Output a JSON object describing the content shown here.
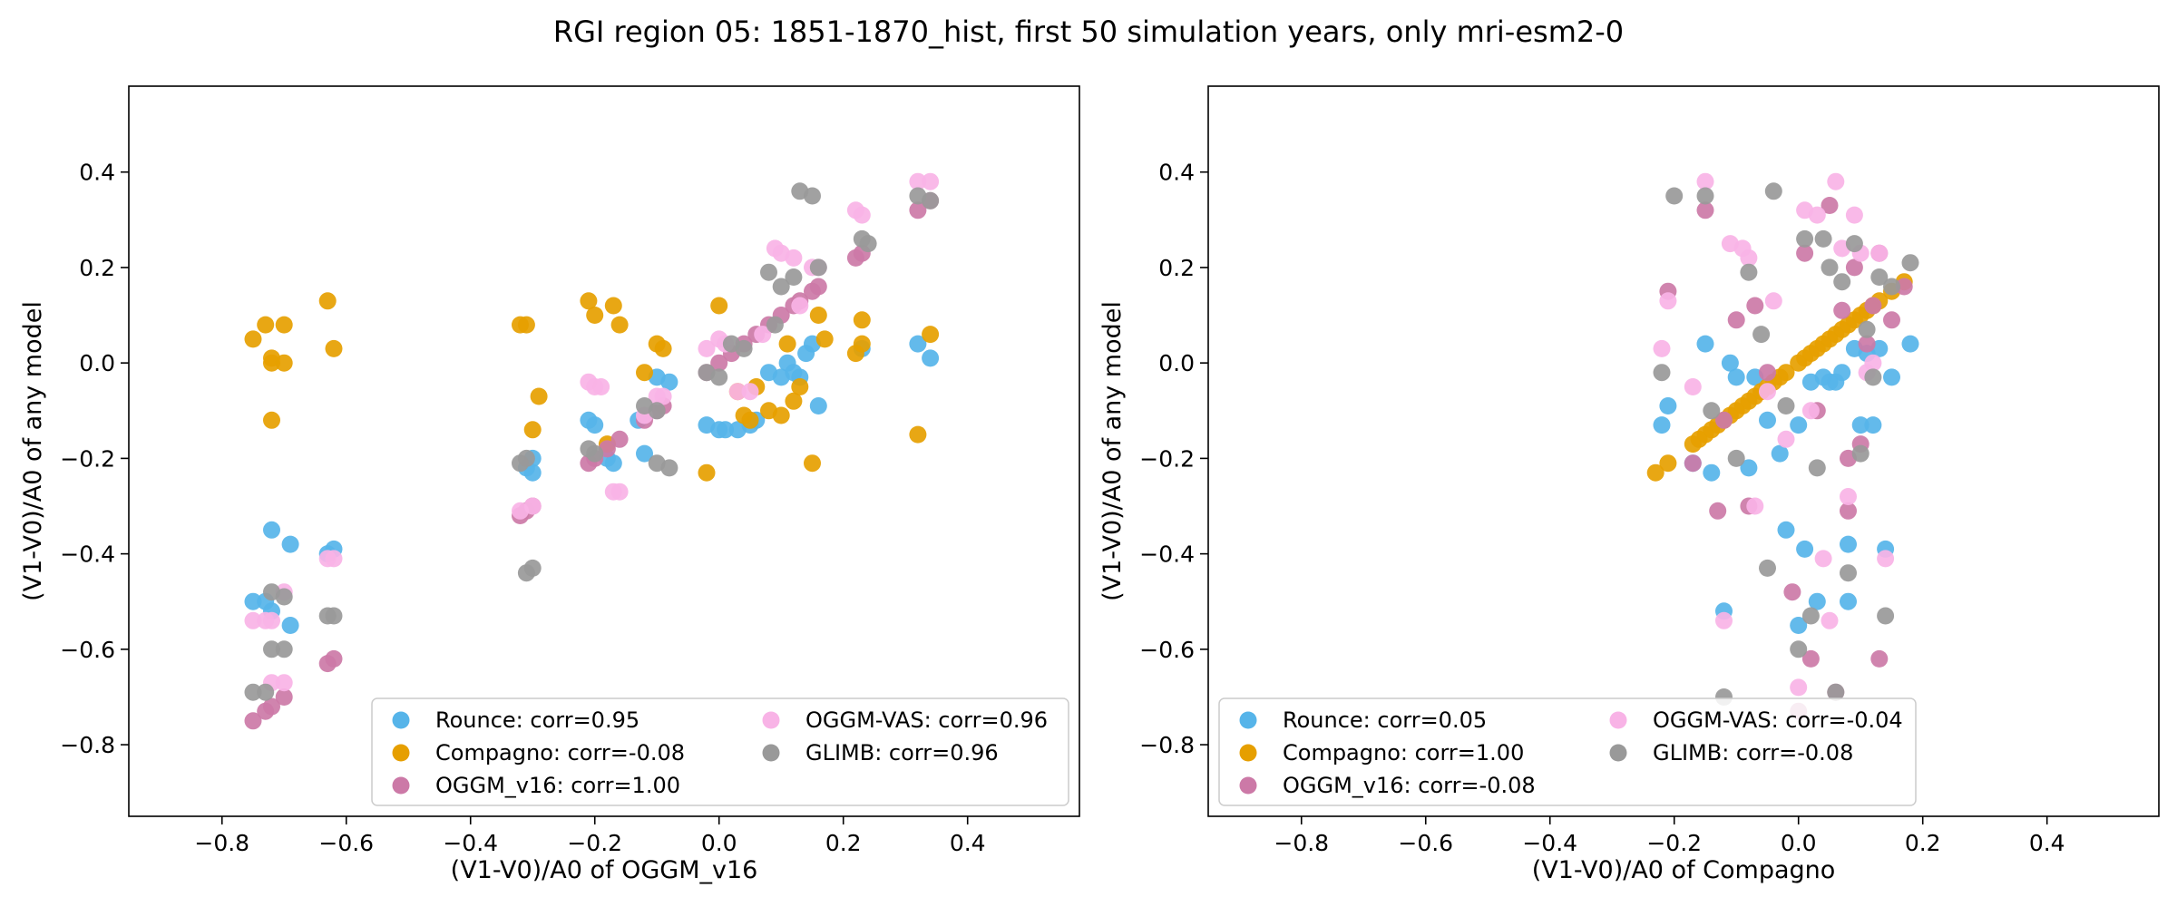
{
  "figure": {
    "title": "RGI region 05: 1851-1870_hist, first 50 simulation years, only mri-esm2-0"
  },
  "colors": {
    "Rounce": "#56b4e9",
    "Compagno": "#e69f00",
    "OGGM_v16": "#cc79a7",
    "OGGM-VAS": "#f8b3e6",
    "GLIMB": "#999999"
  },
  "chart_data": [
    {
      "type": "scatter",
      "xlabel": "(V1-V0)/A0 of OGGM_v16",
      "ylabel": "(V1-V0)/A0 of any model",
      "xlim": [
        -0.95,
        0.58
      ],
      "ylim": [
        -0.95,
        0.58
      ],
      "xticks": [
        "−0.8",
        "−0.6",
        "−0.4",
        "−0.2",
        "0.0",
        "0.2",
        "0.4"
      ],
      "yticks": [
        "−0.8",
        "−0.6",
        "−0.4",
        "−0.2",
        "0.0",
        "0.2",
        "0.4"
      ],
      "legend_placement": "lower-right",
      "series": [
        {
          "name": "Rounce",
          "legend": "Rounce: corr=0.95",
          "x": [
            -0.75,
            -0.73,
            -0.72,
            -0.72,
            -0.69,
            -0.69,
            -0.63,
            -0.62,
            -0.31,
            -0.3,
            -0.3,
            -0.21,
            -0.2,
            -0.18,
            -0.17,
            -0.13,
            -0.12,
            -0.1,
            -0.08,
            -0.02,
            0.0,
            0.01,
            0.03,
            0.05,
            0.06,
            0.08,
            0.1,
            0.11,
            0.12,
            0.13,
            0.14,
            0.15,
            0.16,
            0.23,
            0.32,
            0.34
          ],
          "y": [
            -0.5,
            -0.5,
            -0.52,
            -0.35,
            -0.38,
            -0.55,
            -0.4,
            -0.39,
            -0.22,
            -0.23,
            -0.2,
            -0.12,
            -0.13,
            -0.2,
            -0.21,
            -0.12,
            -0.19,
            -0.03,
            -0.04,
            -0.13,
            -0.14,
            -0.14,
            -0.14,
            -0.13,
            -0.12,
            -0.02,
            -0.03,
            0.0,
            -0.02,
            -0.03,
            0.02,
            0.04,
            -0.09,
            0.03,
            0.04,
            0.01
          ]
        },
        {
          "name": "Compagno",
          "legend": "Compagno: corr=-0.08",
          "x": [
            -0.75,
            -0.73,
            -0.72,
            -0.72,
            -0.72,
            -0.7,
            -0.7,
            -0.63,
            -0.62,
            -0.32,
            -0.31,
            -0.3,
            -0.29,
            -0.21,
            -0.2,
            -0.18,
            -0.17,
            -0.16,
            -0.12,
            -0.1,
            -0.09,
            -0.02,
            0.0,
            0.03,
            0.04,
            0.05,
            0.06,
            0.08,
            0.1,
            0.11,
            0.12,
            0.13,
            0.15,
            0.16,
            0.17,
            0.22,
            0.23,
            0.23,
            0.32,
            0.34
          ],
          "y": [
            0.05,
            0.08,
            0.0,
            0.01,
            -0.12,
            0.08,
            0.0,
            0.13,
            0.03,
            0.08,
            0.08,
            -0.14,
            -0.07,
            0.13,
            0.1,
            -0.17,
            0.12,
            0.08,
            -0.02,
            0.04,
            0.03,
            -0.23,
            0.12,
            -0.06,
            -0.11,
            -0.12,
            -0.05,
            -0.1,
            -0.11,
            0.04,
            -0.08,
            -0.05,
            -0.21,
            0.1,
            0.05,
            0.02,
            0.09,
            0.04,
            -0.15,
            0.06
          ]
        },
        {
          "name": "OGGM_v16",
          "legend": "OGGM_v16: corr=1.00",
          "x": [
            -0.75,
            -0.73,
            -0.72,
            -0.7,
            -0.63,
            -0.62,
            -0.32,
            -0.31,
            -0.3,
            -0.21,
            -0.2,
            -0.18,
            -0.16,
            -0.12,
            -0.1,
            -0.09,
            -0.02,
            0.0,
            0.02,
            0.04,
            0.06,
            0.08,
            0.1,
            0.12,
            0.13,
            0.15,
            0.16,
            0.22,
            0.23,
            0.32,
            0.34
          ],
          "y": [
            -0.75,
            -0.73,
            -0.72,
            -0.7,
            -0.63,
            -0.62,
            -0.32,
            -0.31,
            -0.3,
            -0.21,
            -0.2,
            -0.18,
            -0.16,
            -0.12,
            -0.1,
            -0.09,
            -0.02,
            0.0,
            0.02,
            0.04,
            0.06,
            0.08,
            0.1,
            0.12,
            0.13,
            0.15,
            0.16,
            0.22,
            0.23,
            0.32,
            0.34
          ]
        },
        {
          "name": "OGGM-VAS",
          "legend": "OGGM-VAS: corr=0.96",
          "x": [
            -0.75,
            -0.73,
            -0.72,
            -0.7,
            -0.7,
            -0.72,
            -0.63,
            -0.62,
            -0.32,
            -0.3,
            -0.21,
            -0.2,
            -0.19,
            -0.17,
            -0.16,
            -0.12,
            -0.1,
            -0.09,
            -0.02,
            0.0,
            0.01,
            0.03,
            0.05,
            0.07,
            0.09,
            0.1,
            0.12,
            0.13,
            0.15,
            0.16,
            0.22,
            0.23,
            0.32,
            0.34
          ],
          "y": [
            -0.54,
            -0.54,
            -0.54,
            -0.48,
            -0.67,
            -0.67,
            -0.41,
            -0.41,
            -0.31,
            -0.3,
            -0.04,
            -0.05,
            -0.05,
            -0.27,
            -0.27,
            -0.11,
            -0.07,
            -0.07,
            0.03,
            0.05,
            0.04,
            -0.06,
            -0.06,
            0.06,
            0.24,
            0.23,
            0.22,
            0.12,
            0.2,
            0.2,
            0.32,
            0.31,
            0.38,
            0.38
          ]
        },
        {
          "name": "GLIMB",
          "legend": "GLIMB: corr=0.96",
          "x": [
            -0.75,
            -0.73,
            -0.72,
            -0.72,
            -0.7,
            -0.7,
            -0.63,
            -0.62,
            -0.32,
            -0.31,
            -0.31,
            -0.3,
            -0.21,
            -0.2,
            -0.12,
            -0.1,
            -0.1,
            -0.08,
            -0.02,
            0.0,
            0.02,
            0.04,
            0.08,
            0.09,
            0.1,
            0.12,
            0.13,
            0.15,
            0.16,
            0.23,
            0.24,
            0.32,
            0.34
          ],
          "y": [
            -0.69,
            -0.69,
            -0.48,
            -0.6,
            -0.49,
            -0.6,
            -0.53,
            -0.53,
            -0.21,
            -0.2,
            -0.44,
            -0.43,
            -0.18,
            -0.19,
            -0.09,
            -0.1,
            -0.21,
            -0.22,
            -0.02,
            -0.03,
            0.04,
            0.03,
            0.19,
            0.08,
            0.16,
            0.18,
            0.36,
            0.35,
            0.2,
            0.26,
            0.25,
            0.35,
            0.34
          ]
        }
      ]
    },
    {
      "type": "scatter",
      "xlabel": "(V1-V0)/A0 of Compagno",
      "ylabel": "(V1-V0)/A0 of any model",
      "xlim": [
        -0.95,
        0.58
      ],
      "ylim": [
        -0.95,
        0.58
      ],
      "xticks": [
        "−0.8",
        "−0.6",
        "−0.4",
        "−0.2",
        "0.0",
        "0.2",
        "0.4"
      ],
      "yticks": [
        "−0.8",
        "−0.6",
        "−0.4",
        "−0.2",
        "0.0",
        "0.2",
        "0.4"
      ],
      "legend_placement": "lower-left",
      "series": [
        {
          "name": "Rounce",
          "legend": "Rounce: corr=0.05",
          "x": [
            -0.22,
            -0.21,
            -0.17,
            -0.15,
            -0.14,
            -0.12,
            -0.11,
            -0.1,
            -0.08,
            -0.07,
            -0.05,
            -0.03,
            -0.02,
            0.0,
            0.0,
            0.01,
            0.02,
            0.03,
            0.04,
            0.05,
            0.06,
            0.07,
            0.08,
            0.08,
            0.09,
            0.1,
            0.11,
            0.12,
            0.13,
            0.14,
            0.15,
            0.18
          ],
          "y": [
            -0.13,
            -0.09,
            -0.21,
            0.04,
            -0.23,
            -0.52,
            0.0,
            -0.03,
            -0.22,
            -0.03,
            -0.12,
            -0.19,
            -0.35,
            -0.55,
            -0.13,
            -0.39,
            -0.04,
            -0.5,
            -0.03,
            -0.04,
            -0.04,
            -0.02,
            -0.38,
            -0.5,
            0.03,
            -0.13,
            0.02,
            -0.13,
            0.03,
            -0.39,
            -0.03,
            0.04
          ]
        },
        {
          "name": "Compagno",
          "legend": "Compagno: corr=1.00",
          "x": [
            -0.23,
            -0.21,
            -0.17,
            -0.16,
            -0.15,
            -0.14,
            -0.13,
            -0.12,
            -0.11,
            -0.1,
            -0.09,
            -0.08,
            -0.07,
            -0.06,
            -0.05,
            -0.04,
            -0.03,
            -0.02,
            0.0,
            0.01,
            0.02,
            0.03,
            0.04,
            0.05,
            0.06,
            0.07,
            0.08,
            0.09,
            0.1,
            0.11,
            0.12,
            0.13,
            0.15,
            0.17
          ],
          "y": [
            -0.23,
            -0.21,
            -0.17,
            -0.16,
            -0.15,
            -0.14,
            -0.13,
            -0.12,
            -0.11,
            -0.1,
            -0.09,
            -0.08,
            -0.07,
            -0.06,
            -0.05,
            -0.04,
            -0.03,
            -0.02,
            0.0,
            0.01,
            0.02,
            0.03,
            0.04,
            0.05,
            0.06,
            0.07,
            0.08,
            0.09,
            0.1,
            0.11,
            0.12,
            0.13,
            0.15,
            0.17
          ]
        },
        {
          "name": "OGGM_v16",
          "legend": "OGGM_v16: corr=-0.08",
          "x": [
            -0.21,
            -0.17,
            -0.15,
            -0.13,
            -0.12,
            -0.1,
            -0.08,
            -0.07,
            -0.05,
            -0.01,
            0.0,
            0.01,
            0.02,
            0.03,
            0.05,
            0.06,
            0.07,
            0.08,
            0.08,
            0.09,
            0.1,
            0.11,
            0.12,
            0.13,
            0.13,
            0.15,
            0.17
          ],
          "y": [
            0.15,
            -0.21,
            0.32,
            -0.31,
            -0.12,
            0.09,
            -0.3,
            0.12,
            -0.02,
            -0.48,
            -0.73,
            0.23,
            -0.62,
            -0.1,
            0.33,
            -0.69,
            0.11,
            -0.31,
            -0.2,
            0.2,
            -0.17,
            0.04,
            0.12,
            0.23,
            -0.62,
            0.09,
            0.16
          ]
        },
        {
          "name": "OGGM-VAS",
          "legend": "OGGM-VAS: corr=-0.04",
          "x": [
            -0.22,
            -0.21,
            -0.17,
            -0.15,
            -0.12,
            -0.11,
            -0.09,
            -0.08,
            -0.07,
            -0.05,
            -0.04,
            -0.02,
            0.0,
            0.01,
            0.02,
            0.03,
            0.04,
            0.05,
            0.06,
            0.07,
            0.08,
            0.09,
            0.1,
            0.11,
            0.12,
            0.13,
            0.14
          ],
          "y": [
            0.03,
            0.13,
            -0.05,
            0.38,
            -0.54,
            0.25,
            0.24,
            0.22,
            -0.3,
            -0.06,
            0.13,
            -0.16,
            -0.68,
            0.32,
            -0.1,
            0.31,
            -0.41,
            -0.54,
            0.38,
            0.24,
            -0.28,
            0.31,
            0.23,
            -0.02,
            0.0,
            0.23,
            -0.41
          ]
        },
        {
          "name": "GLIMB",
          "legend": "GLIMB: corr=-0.08",
          "x": [
            -0.22,
            -0.2,
            -0.15,
            -0.14,
            -0.12,
            -0.1,
            -0.08,
            -0.06,
            -0.05,
            -0.04,
            -0.02,
            0.0,
            0.01,
            0.02,
            0.03,
            0.04,
            0.05,
            0.06,
            0.07,
            0.08,
            0.09,
            0.1,
            0.11,
            0.12,
            0.13,
            0.14,
            0.15,
            0.18
          ],
          "y": [
            -0.02,
            0.35,
            0.35,
            -0.1,
            -0.7,
            -0.2,
            0.19,
            0.06,
            -0.43,
            0.36,
            -0.09,
            -0.6,
            0.26,
            -0.53,
            -0.22,
            0.26,
            0.2,
            -0.69,
            0.17,
            -0.44,
            0.25,
            -0.19,
            0.07,
            -0.03,
            0.18,
            -0.53,
            0.16,
            0.21
          ]
        }
      ]
    }
  ]
}
